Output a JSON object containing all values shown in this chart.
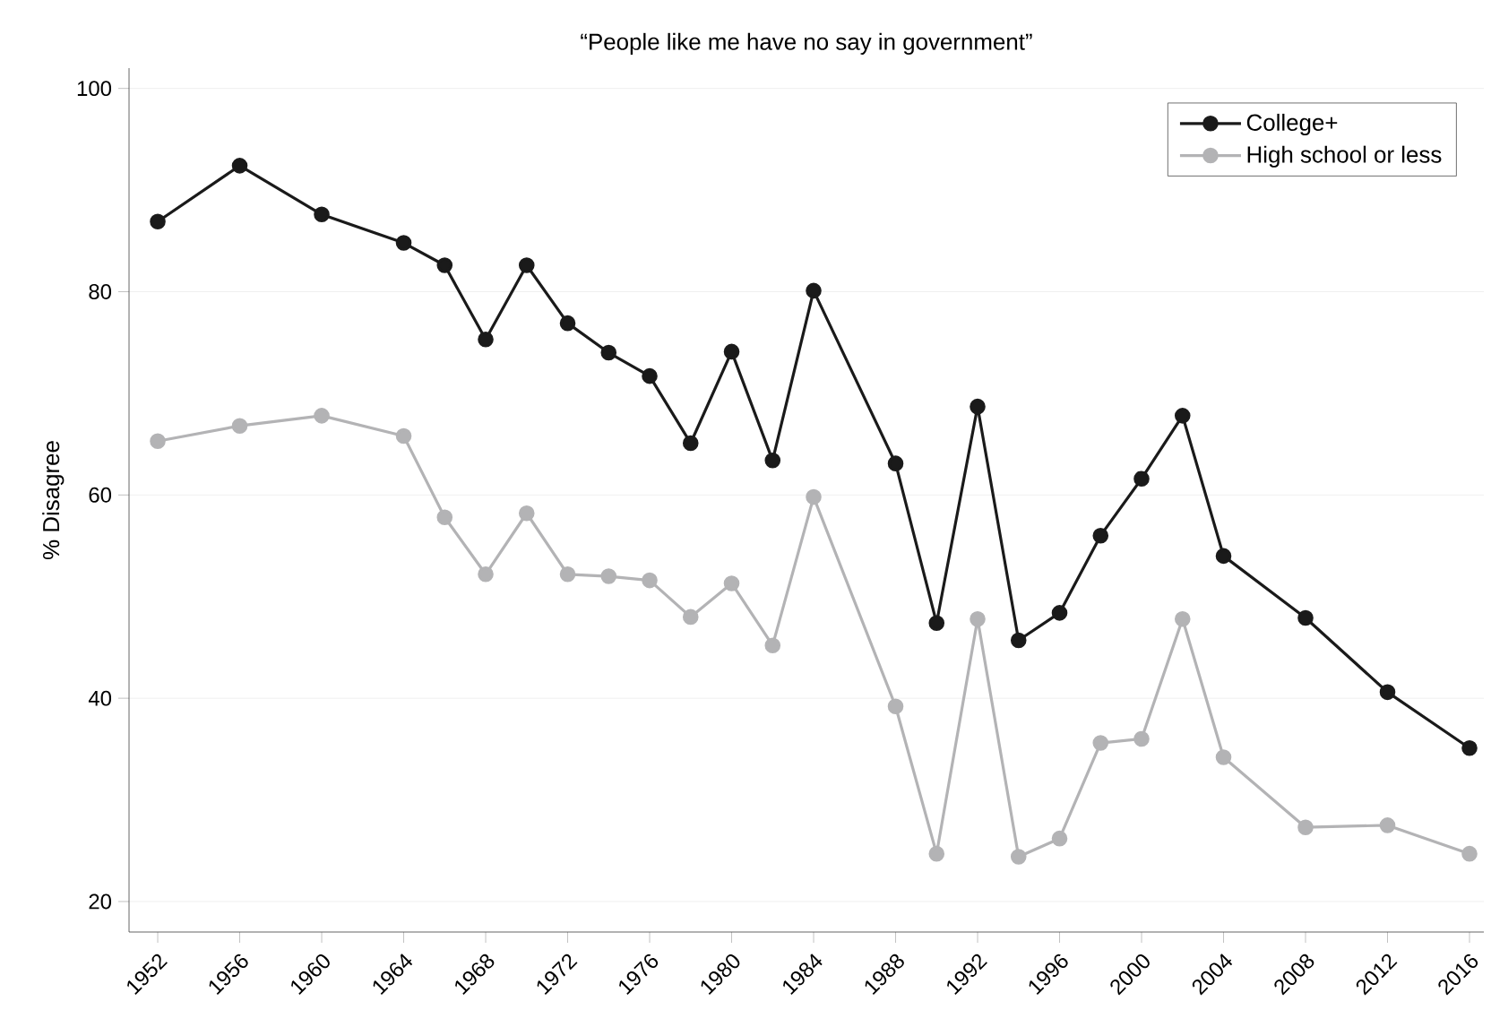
{
  "chart_data": {
    "type": "line",
    "title": "“People like me have no say in government”",
    "ylabel": "% Disagree",
    "x": [
      1952,
      1956,
      1960,
      1964,
      1966,
      1968,
      1970,
      1972,
      1974,
      1976,
      1978,
      1980,
      1982,
      1984,
      1988,
      1990,
      1992,
      1994,
      1996,
      1998,
      2000,
      2002,
      2004,
      2008,
      2012,
      2016
    ],
    "series": [
      {
        "name": "College+",
        "color": "#1a1a1a",
        "values": [
          86.9,
          92.4,
          87.6,
          84.8,
          82.6,
          75.3,
          82.6,
          76.9,
          74.0,
          71.7,
          65.1,
          74.1,
          63.4,
          80.1,
          63.1,
          47.4,
          68.7,
          45.7,
          48.4,
          56.0,
          61.6,
          67.8,
          54.0,
          47.9,
          40.6,
          35.1
        ]
      },
      {
        "name": "High school or less",
        "color": "#b3b3b5",
        "values": [
          65.3,
          66.8,
          67.8,
          65.8,
          57.8,
          52.2,
          58.2,
          52.2,
          52.0,
          51.6,
          48.0,
          51.3,
          45.2,
          59.8,
          39.2,
          24.7,
          47.8,
          24.4,
          26.2,
          35.6,
          36.0,
          47.8,
          34.2,
          27.3,
          27.5,
          24.7
        ]
      }
    ],
    "xlim": [
      1950.6,
      2016.7
    ],
    "ylim": [
      17,
      102
    ],
    "xticks": [
      1952,
      1956,
      1960,
      1964,
      1968,
      1972,
      1976,
      1980,
      1984,
      1988,
      1992,
      1996,
      2000,
      2004,
      2008,
      2012,
      2016
    ],
    "yticks": [
      20,
      40,
      60,
      80,
      100
    ],
    "grid": "y",
    "legend": "top right",
    "marker": "circle",
    "line_style": "solid"
  }
}
